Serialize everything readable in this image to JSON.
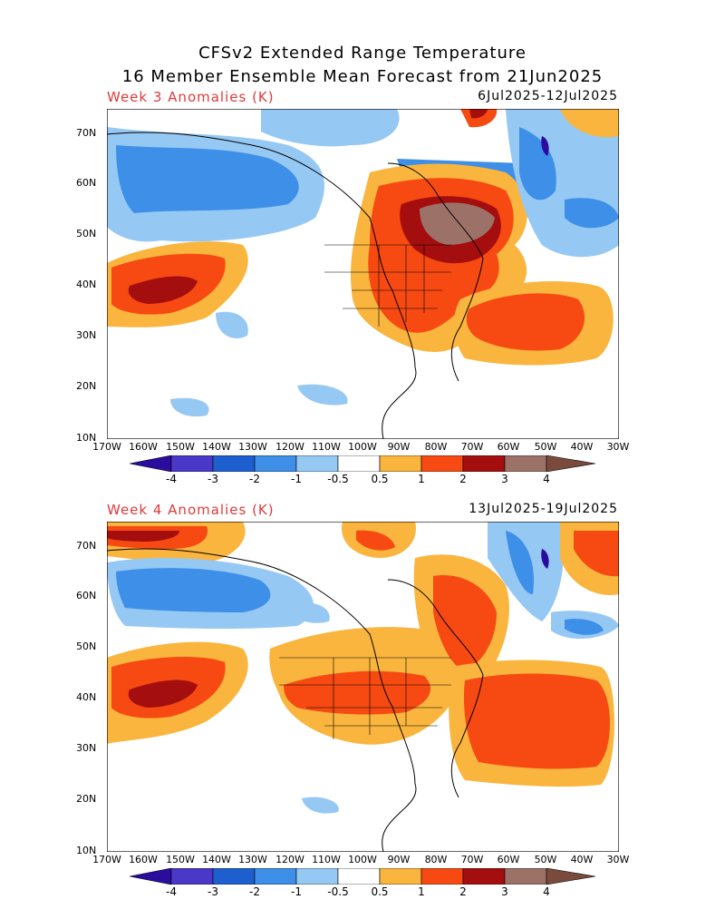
{
  "title_line1": "CFSv2 Extended Range Temperature",
  "title_line2": "16 Member Ensemble Mean Forecast from 21Jun2025",
  "panels": [
    {
      "label": "Week 3 Anomalies (K)",
      "dates": "6Jul2025-12Jul2025"
    },
    {
      "label": "Week 4 Anomalies (K)",
      "dates": "13Jul2025-19Jul2025"
    }
  ],
  "lat_labels": [
    "70N",
    "60N",
    "50N",
    "40N",
    "30N",
    "20N",
    "10N"
  ],
  "lon_labels": [
    "170W",
    "160W",
    "150W",
    "140W",
    "130W",
    "120W",
    "110W",
    "100W",
    "90W",
    "80W",
    "70W",
    "60W",
    "50W",
    "40W",
    "30W"
  ],
  "colorbar": {
    "labels": [
      "-4",
      "-3",
      "-2",
      "-1",
      "-0.5",
      "0.5",
      "1",
      "2",
      "3",
      "4"
    ],
    "colors": [
      "#2a0c9e",
      "#4a38c9",
      "#1e5fd0",
      "#3d8fe8",
      "#96c8f4",
      "#ffffff",
      "#f9b53e",
      "#f64a12",
      "#a50e0e",
      "#9c7268",
      "#7a4a3c"
    ]
  }
}
